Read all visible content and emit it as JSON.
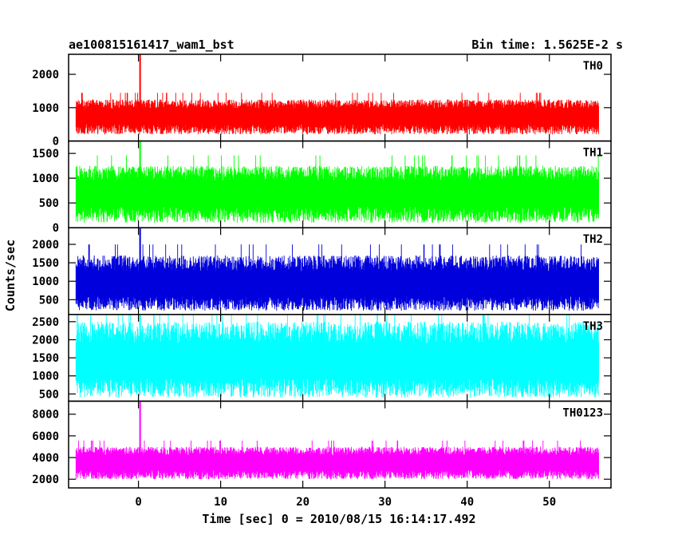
{
  "header": {
    "title": "ae100815161417_wam1_bst",
    "bin_time": "Bin time: 1.5625E-2 s"
  },
  "chart_data": {
    "type": "line",
    "xlabel": "Time [sec] 0 = 2010/08/15 16:14:17.492",
    "ylabel": "Counts/sec",
    "xlim": [
      -8.5,
      57.5
    ],
    "x_ticks": [
      0,
      10,
      20,
      30,
      40,
      50
    ],
    "x_tick_labels": [
      "0",
      "10",
      "20",
      "30",
      "40",
      "50"
    ],
    "x_range_data": [
      -7.6,
      56.0
    ],
    "panels": [
      {
        "name": "TH0",
        "color": "#ff0000",
        "ylim": [
          0,
          2600
        ],
        "y_ticks": [
          0,
          1000,
          2000
        ],
        "y_tick_labels": [
          "0",
          "1000",
          "2000"
        ],
        "base": 700,
        "low": 200,
        "high": 1250,
        "spike": {
          "x": 0.2,
          "y": 2600
        }
      },
      {
        "name": "TH1",
        "color": "#00ff00",
        "ylim": [
          0,
          1750
        ],
        "y_ticks": [
          0,
          500,
          1000,
          1500
        ],
        "y_tick_labels": [
          "0",
          "500",
          "1000",
          "1500"
        ],
        "base": 650,
        "low": 100,
        "high": 1250,
        "spike": {
          "x": 0.2,
          "y": 1750
        }
      },
      {
        "name": "TH2",
        "color": "#0000dd",
        "ylim": [
          100,
          2450
        ],
        "y_ticks": [
          500,
          1000,
          1500,
          2000
        ],
        "y_tick_labels": [
          "500",
          "1000",
          "1500",
          "2000"
        ],
        "base": 850,
        "low": 200,
        "high": 1700,
        "spike": {
          "x": 0.2,
          "y": 2450
        }
      },
      {
        "name": "TH3",
        "color": "#00ffff",
        "ylim": [
          300,
          2700
        ],
        "y_ticks": [
          500,
          1000,
          1500,
          2000,
          2500
        ],
        "y_tick_labels": [
          "500",
          "1000",
          "1500",
          "2000",
          "2500"
        ],
        "base": 1300,
        "low": 400,
        "high": 2500,
        "spike": {
          "x": 0.2,
          "y": 2700
        }
      },
      {
        "name": "TH0123",
        "color": "#ff00ff",
        "ylim": [
          1200,
          9200
        ],
        "y_ticks": [
          2000,
          4000,
          6000,
          8000
        ],
        "y_tick_labels": [
          "2000",
          "4000",
          "6000",
          "8000"
        ],
        "base": 3400,
        "low": 2000,
        "high": 5000,
        "spike": {
          "x": 0.2,
          "y": 9200
        }
      }
    ]
  }
}
